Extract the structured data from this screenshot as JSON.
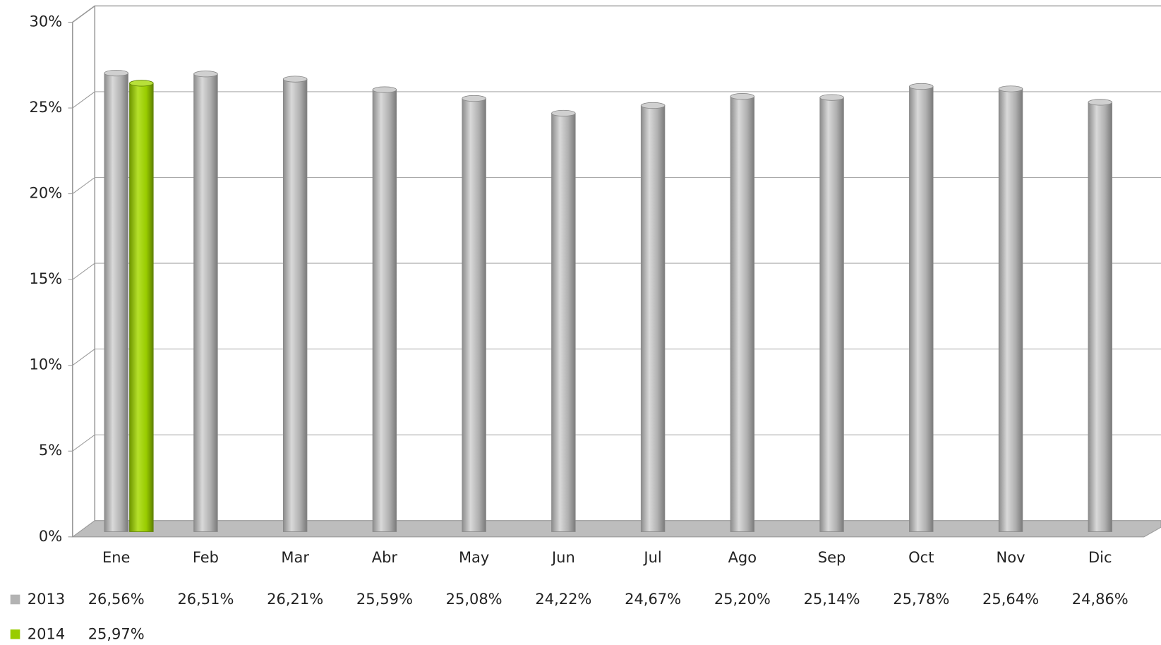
{
  "chart_data": {
    "type": "bar",
    "categories": [
      "Ene",
      "Feb",
      "Mar",
      "Abr",
      "May",
      "Jun",
      "Jul",
      "Ago",
      "Sep",
      "Oct",
      "Nov",
      "Dic"
    ],
    "series": [
      {
        "name": "2013",
        "color": "#b3b3b3",
        "values": [
          26.56,
          26.51,
          26.21,
          25.59,
          25.08,
          24.22,
          24.67,
          25.2,
          25.14,
          25.78,
          25.64,
          24.86
        ],
        "value_labels": [
          "26,56%",
          "26,51%",
          "26,21%",
          "25,59%",
          "25,08%",
          "24,22%",
          "24,67%",
          "25,20%",
          "25,14%",
          "25,78%",
          "25,64%",
          "24,86%"
        ]
      },
      {
        "name": "2014",
        "color": "#99cc00",
        "values": [
          25.97,
          null,
          null,
          null,
          null,
          null,
          null,
          null,
          null,
          null,
          null,
          null
        ],
        "value_labels": [
          "25,97%",
          null,
          null,
          null,
          null,
          null,
          null,
          null,
          null,
          null,
          null,
          null
        ]
      }
    ],
    "ylim": [
      0,
      30
    ],
    "yticks": [
      {
        "value": 0,
        "label": "0%"
      },
      {
        "value": 5,
        "label": "5%"
      },
      {
        "value": 10,
        "label": "10%"
      },
      {
        "value": 15,
        "label": "15%"
      },
      {
        "value": 20,
        "label": "20%"
      },
      {
        "value": 25,
        "label": "25%"
      },
      {
        "value": 30,
        "label": "30%"
      }
    ],
    "grid": true
  }
}
